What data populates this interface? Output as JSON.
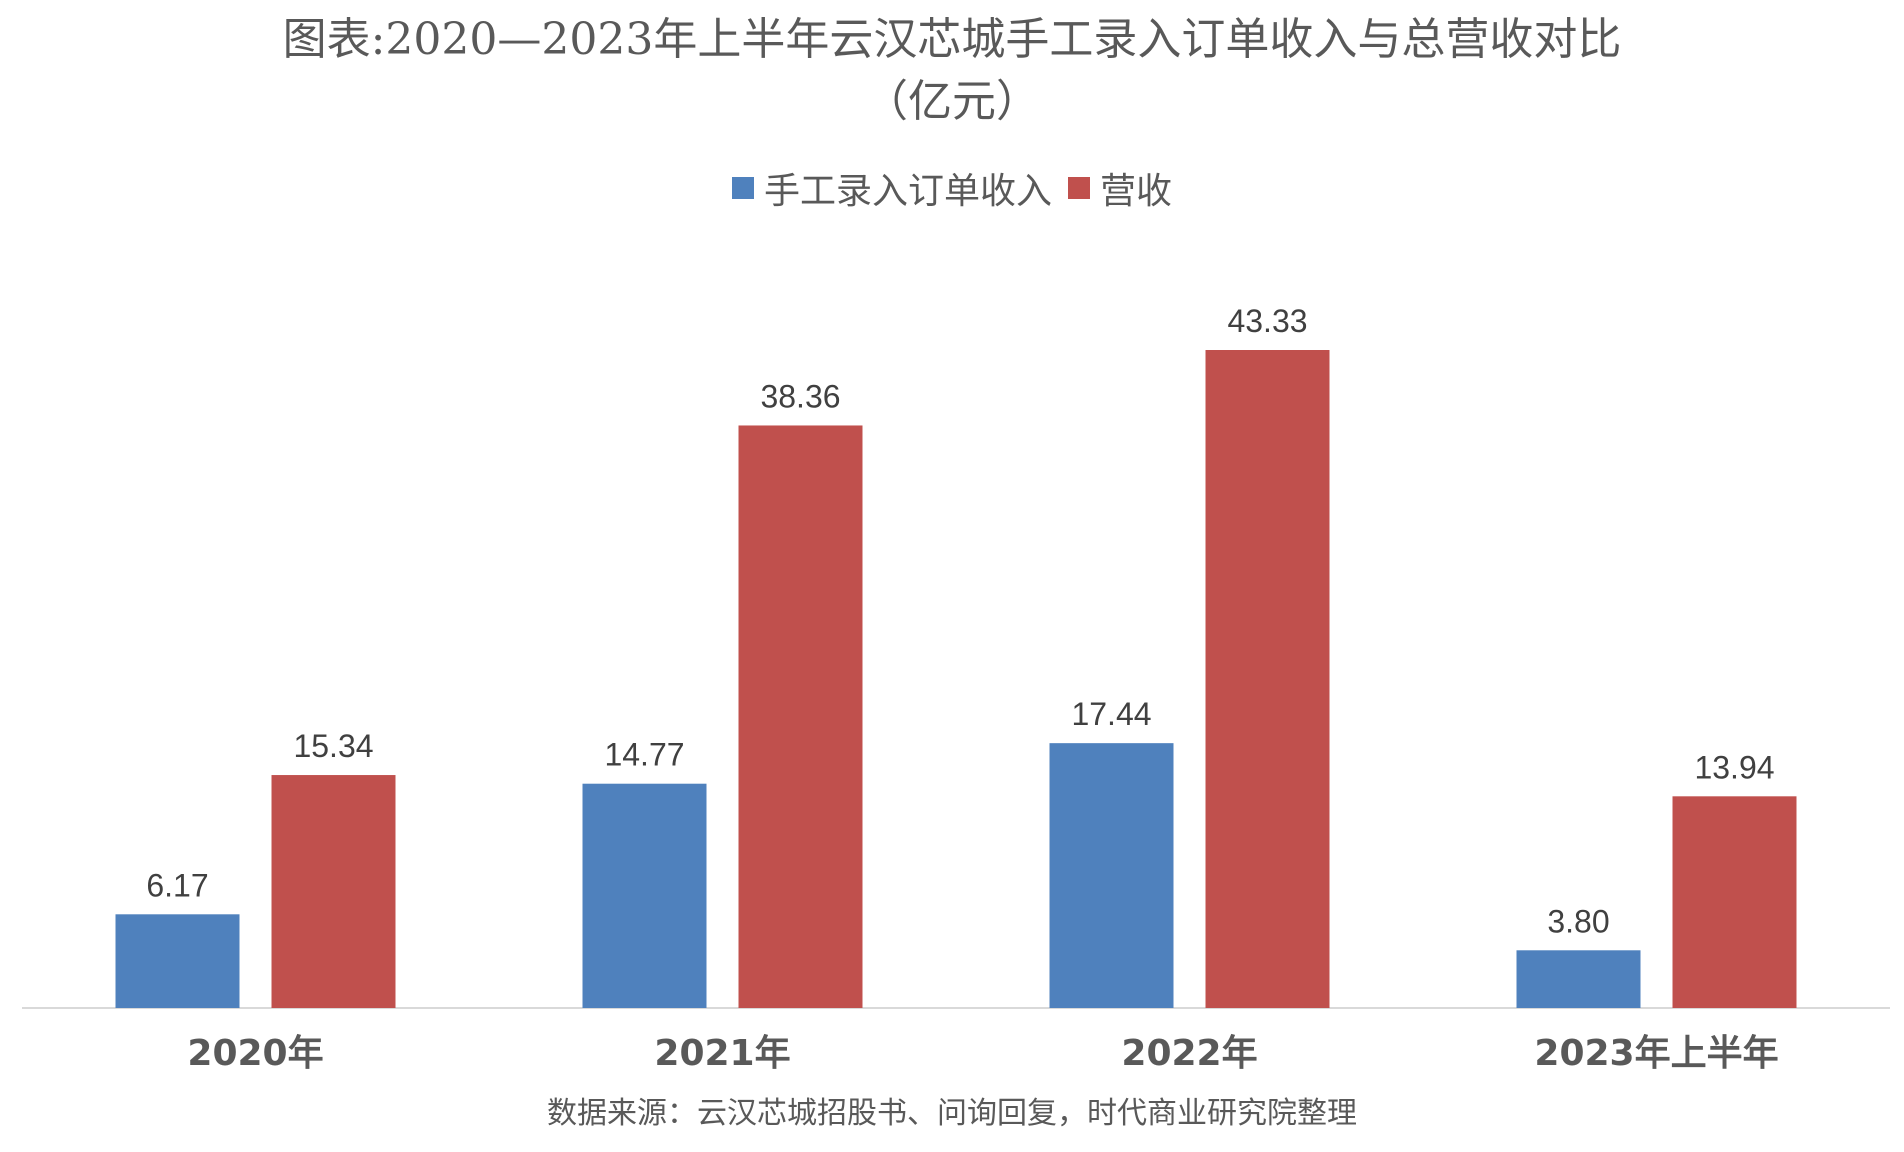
{
  "title": {
    "line1": "图表:2020—2023年上半年云汉芯城手工录入订单收入与总营收对比",
    "line2": "（亿元）"
  },
  "legend": [
    {
      "label": "手工录入订单收入",
      "color": "#4f81bd"
    },
    {
      "label": "营收",
      "color": "#c0504d"
    }
  ],
  "source": "数据来源：云汉芯城招股书、问询回复，时代商业研究院整理",
  "chart_data": {
    "type": "bar",
    "categories": [
      "2020年",
      "2021年",
      "2022年",
      "2023年上半年"
    ],
    "series": [
      {
        "name": "手工录入订单收入",
        "values": [
          6.17,
          14.77,
          17.44,
          3.8
        ],
        "labels": [
          "6.17",
          "14.77",
          "17.44",
          "3.80"
        ],
        "color": "#4f81bd"
      },
      {
        "name": "营收",
        "values": [
          15.34,
          38.36,
          43.33,
          13.94
        ],
        "labels": [
          "15.34",
          "38.36",
          "43.33",
          "13.94"
        ],
        "color": "#c0504d"
      }
    ],
    "grid": false,
    "legend_position": "top"
  }
}
